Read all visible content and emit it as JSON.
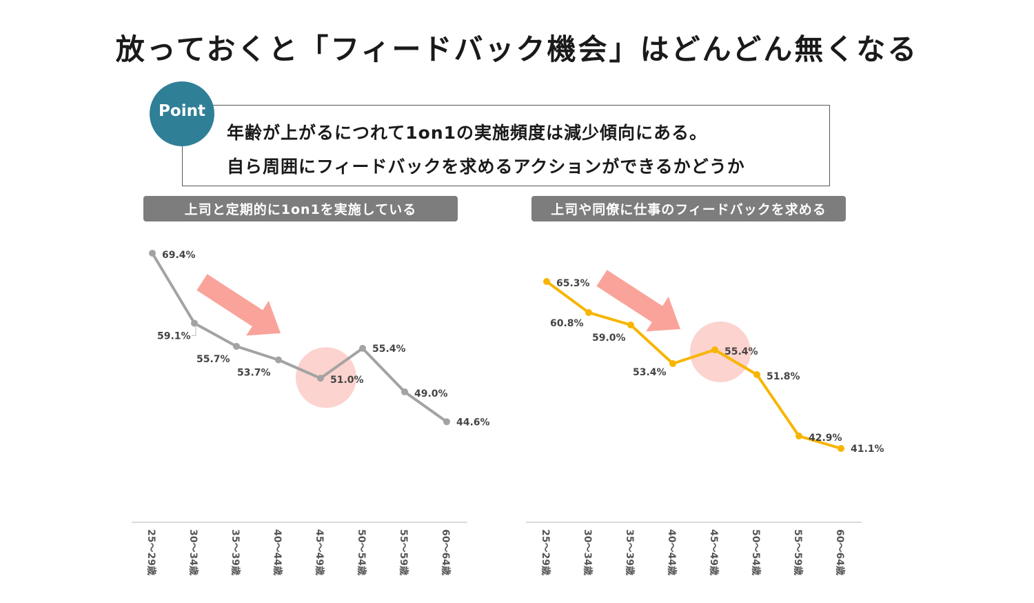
{
  "title": "放っておくと「フィードバック機会」はどんどん無くなる",
  "point": {
    "badge": "Point",
    "line1": "年齢が上がるにつれて1on1の実施頻度は減少傾向にある。",
    "line2": "自ら周囲にフィードバックを求めるアクションができるかどうか"
  },
  "colors": {
    "teal": "#2f7f97",
    "header_bg": "#7d7d7d",
    "series_gray": "#a3a3a3",
    "series_yellow": "#f7b500",
    "arrow": "#f9a39a",
    "highlight": "#fbc8c2"
  },
  "chart_data": [
    {
      "type": "line",
      "title": "上司と定期的に1on1を実施している",
      "categories": [
        "25～29歳",
        "30～34歳",
        "35～39歳",
        "40～44歳",
        "45～49歳",
        "50～54歳",
        "55～59歳",
        "60～64歳"
      ],
      "values": [
        69.4,
        59.1,
        55.7,
        53.7,
        51.0,
        55.4,
        49.0,
        44.6
      ],
      "labels": [
        "69.4%",
        "59.1%",
        "55.7%",
        "53.7%",
        "51.0%",
        "55.4%",
        "49.0%",
        "44.6%"
      ],
      "highlight_index": 4,
      "color": "#a3a3a3"
    },
    {
      "type": "line",
      "title": "上司や同僚に仕事のフィードバックを求める",
      "categories": [
        "25～29歳",
        "30～34歳",
        "35～39歳",
        "40～44歳",
        "45～49歳",
        "50～54歳",
        "55～59歳",
        "60～64歳"
      ],
      "values": [
        65.3,
        60.8,
        59.0,
        53.4,
        55.4,
        51.8,
        42.9,
        41.1
      ],
      "labels": [
        "65.3%",
        "60.8%",
        "59.0%",
        "53.4%",
        "55.4%",
        "51.8%",
        "42.9%",
        "41.1%"
      ],
      "highlight_index": 4,
      "color": "#f7b500"
    }
  ]
}
